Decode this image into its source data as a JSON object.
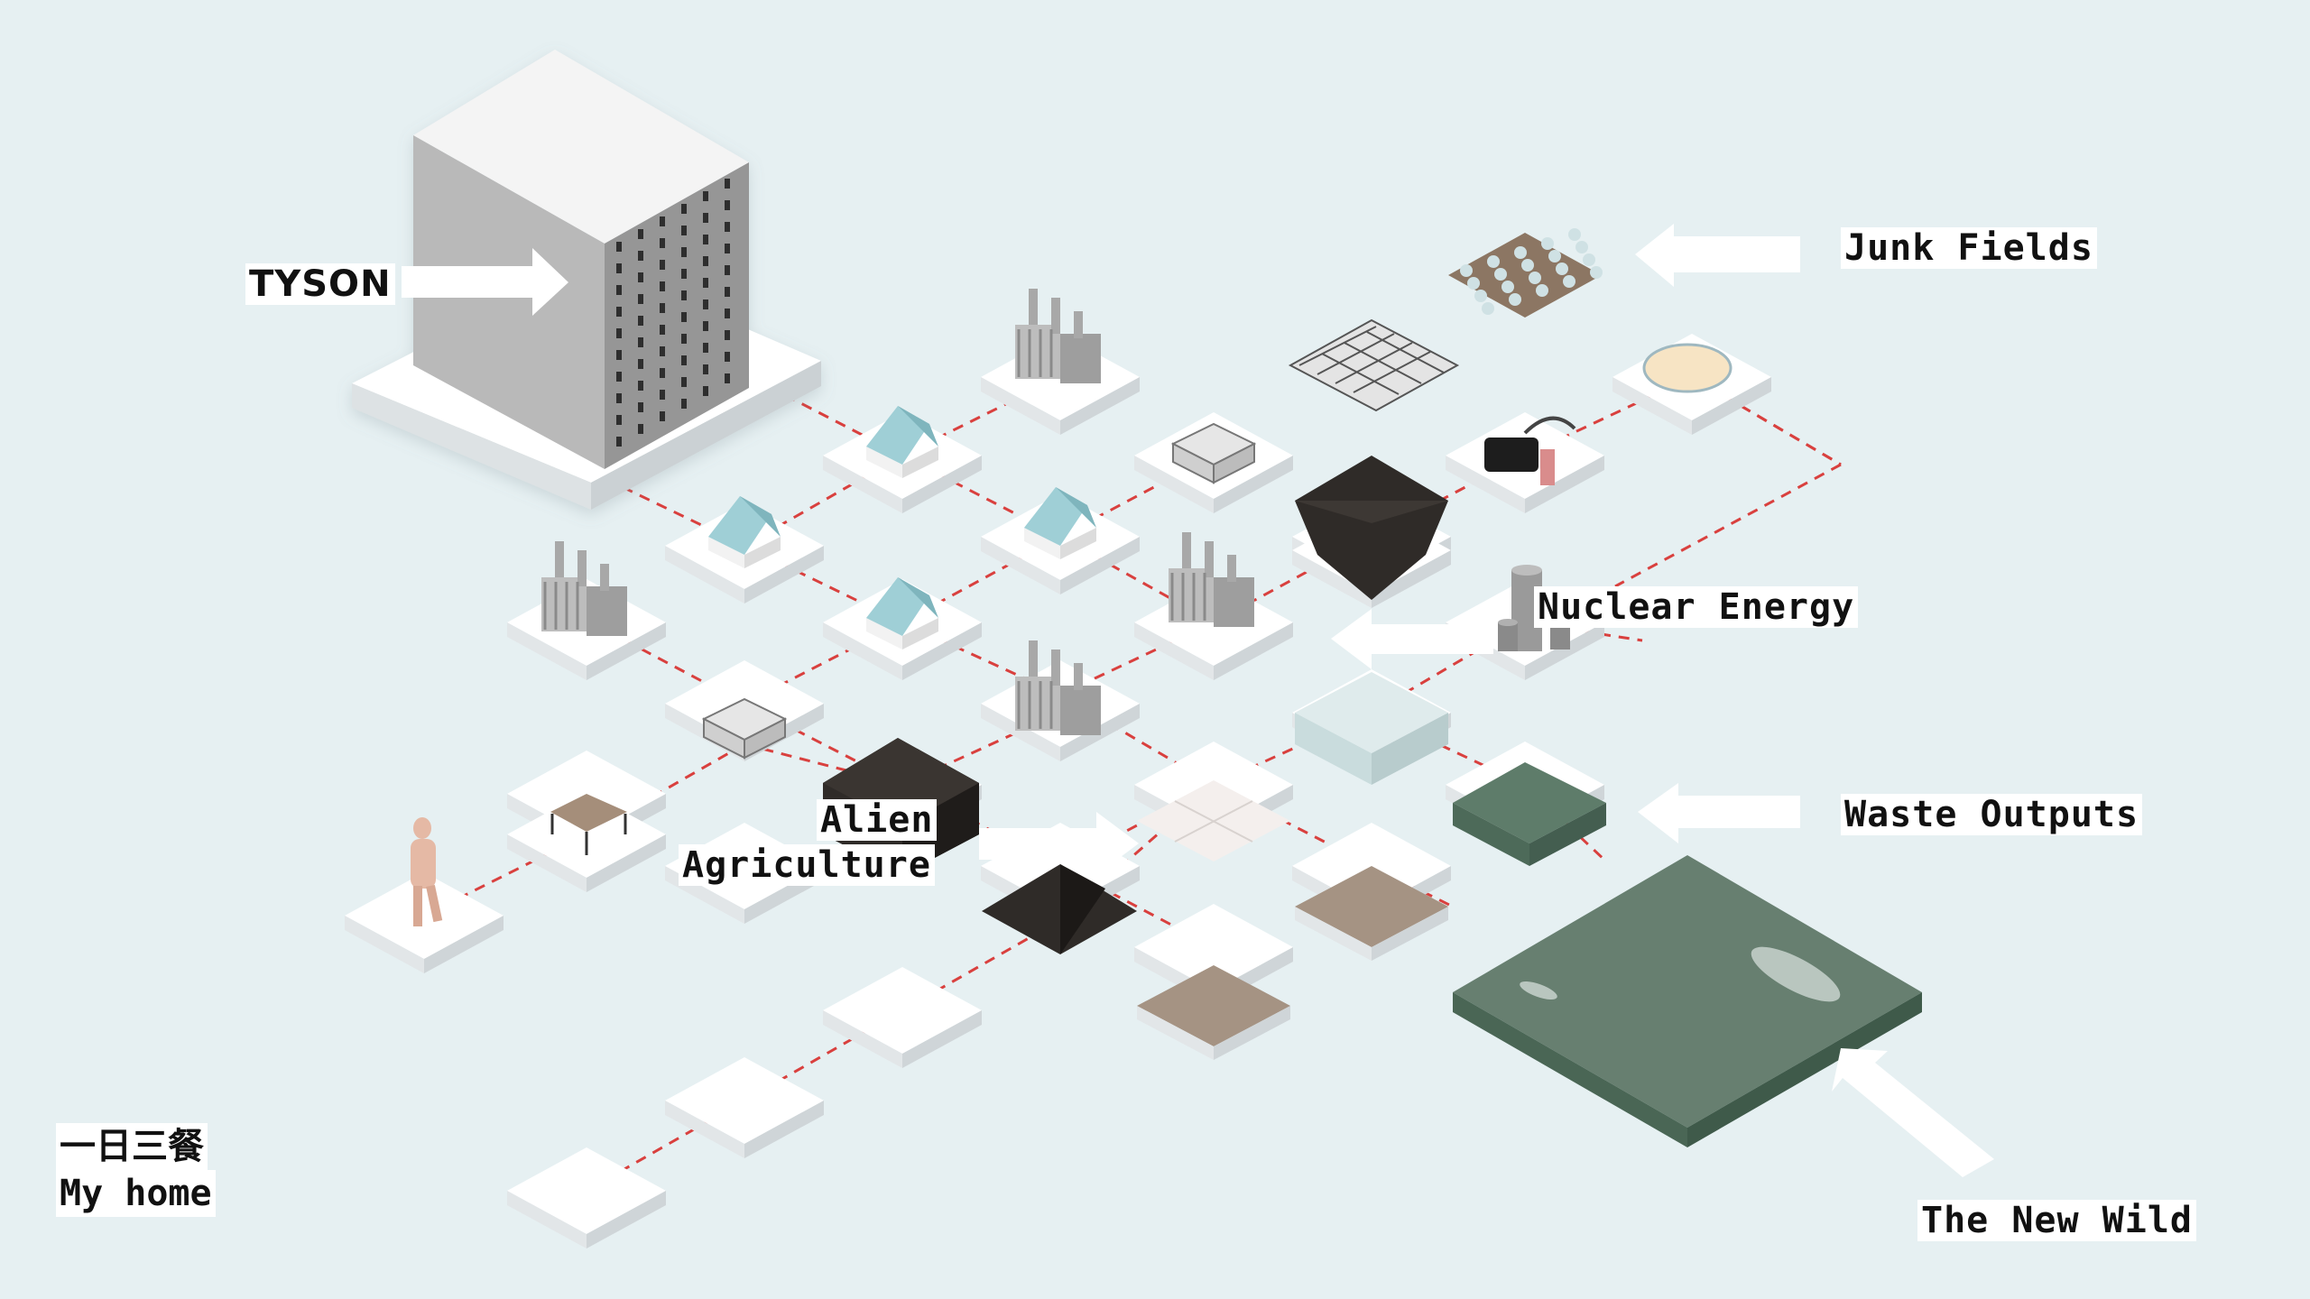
{
  "labels": {
    "tyson": "TYSON",
    "junk_fields": "Junk Fields",
    "nuclear_energy": "Nuclear Energy",
    "waste_outputs": "Waste Outputs",
    "alien_agriculture_line1": "Alien",
    "alien_agriculture_line2": "Agriculture",
    "the_new_wild": "The New Wild",
    "caption_chinese": "一日三餐",
    "caption_english": "My home"
  },
  "colors": {
    "background": "#e6f0f2",
    "tile_top": "#ffffff",
    "tile_left": "#e2e6e8",
    "tile_right": "#cfd5d8",
    "dashed_line": "#d9403e",
    "glass_roof": "#9fcfd6",
    "dark_roof": "#2f2b28",
    "soil": "#a59383",
    "water": "#5e7c6a",
    "building": "#a9a9a9",
    "arrow": "#ffffff"
  }
}
